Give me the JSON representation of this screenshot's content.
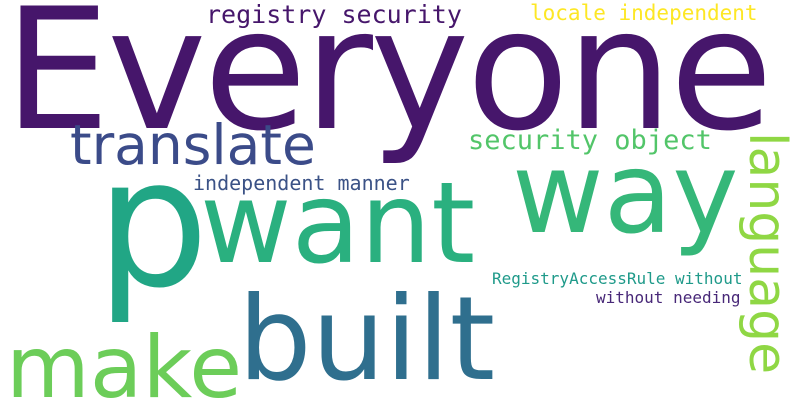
{
  "words": {
    "everyone": {
      "text": "Everyone",
      "color": "#46166b"
    },
    "p": {
      "text": "p",
      "color": "#21a685"
    },
    "want": {
      "text": "want",
      "color": "#2ab07f"
    },
    "way": {
      "text": "way",
      "color": "#35b779"
    },
    "built": {
      "text": "built",
      "color": "#2f6f8e"
    },
    "make": {
      "text": "make",
      "color": "#6ccd59"
    },
    "translate": {
      "text": "translate",
      "color": "#3b4b89"
    },
    "language": {
      "text": "language",
      "color": "#8fd744"
    },
    "registry_security": {
      "text": "registry security",
      "color": "#46166b"
    },
    "locale_independent": {
      "text": "locale independent",
      "color": "#fde725"
    },
    "security_object": {
      "text": "security object",
      "color": "#52c569"
    },
    "independent_manner": {
      "text": "independent manner",
      "color": "#3b5286"
    },
    "registryaccessrule_without": {
      "text": "RegistryAccessRule without",
      "color": "#1f9a8a"
    },
    "without_needing": {
      "text": "without needing",
      "color": "#482878"
    }
  }
}
